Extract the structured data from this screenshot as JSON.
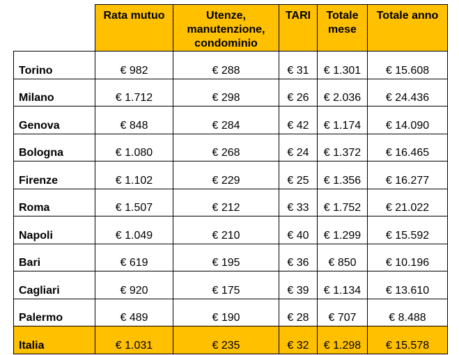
{
  "table": {
    "headers": {
      "rata_mutuo": "Rata mutuo",
      "utenze": "Utenze, manutenzione, condominio",
      "tari": "TARI",
      "totale_mese": "Totale mese",
      "totale_anno": "Totale anno"
    },
    "rows": [
      {
        "city": "Torino",
        "rata_mutuo": "€ 982",
        "utenze": "€ 288",
        "tari": "€ 31",
        "totale_mese": "€ 1.301",
        "totale_anno": "€ 15.608"
      },
      {
        "city": "Milano",
        "rata_mutuo": "€ 1.712",
        "utenze": "€ 298",
        "tari": "€ 26",
        "totale_mese": "€ 2.036",
        "totale_anno": "€ 24.436"
      },
      {
        "city": "Genova",
        "rata_mutuo": "€ 848",
        "utenze": "€ 284",
        "tari": "€ 42",
        "totale_mese": "€ 1.174",
        "totale_anno": "€ 14.090"
      },
      {
        "city": "Bologna",
        "rata_mutuo": "€ 1.080",
        "utenze": "€ 268",
        "tari": "€ 24",
        "totale_mese": "€ 1.372",
        "totale_anno": "€ 16.465"
      },
      {
        "city": "Firenze",
        "rata_mutuo": "€ 1.102",
        "utenze": "€ 229",
        "tari": "€ 25",
        "totale_mese": "€ 1.356",
        "totale_anno": "€ 16.277"
      },
      {
        "city": "Roma",
        "rata_mutuo": "€ 1.507",
        "utenze": "€ 212",
        "tari": "€ 33",
        "totale_mese": "€ 1.752",
        "totale_anno": "€ 21.022"
      },
      {
        "city": "Napoli",
        "rata_mutuo": "€ 1.049",
        "utenze": "€ 210",
        "tari": "€ 40",
        "totale_mese": "€ 1.299",
        "totale_anno": "€ 15.592"
      },
      {
        "city": "Bari",
        "rata_mutuo": "€ 619",
        "utenze": "€ 195",
        "tari": "€ 36",
        "totale_mese": "€ 850",
        "totale_anno": "€ 10.196"
      },
      {
        "city": "Cagliari",
        "rata_mutuo": "€ 920",
        "utenze": "€ 175",
        "tari": "€ 39",
        "totale_mese": "€ 1.134",
        "totale_anno": "€ 13.610"
      },
      {
        "city": "Palermo",
        "rata_mutuo": "€ 489",
        "utenze": "€ 190",
        "tari": "€ 28",
        "totale_mese": "€ 707",
        "totale_anno": "€ 8.488"
      }
    ],
    "total_row": {
      "city": "Italia",
      "rata_mutuo": "€ 1.031",
      "utenze": "€ 235",
      "tari": "€ 32",
      "totale_mese": "€ 1.298",
      "totale_anno": "€ 15.578"
    }
  },
  "colors": {
    "header_fill": "#ffc000",
    "total_row_fill": "#ffc000",
    "border": "#000000"
  }
}
